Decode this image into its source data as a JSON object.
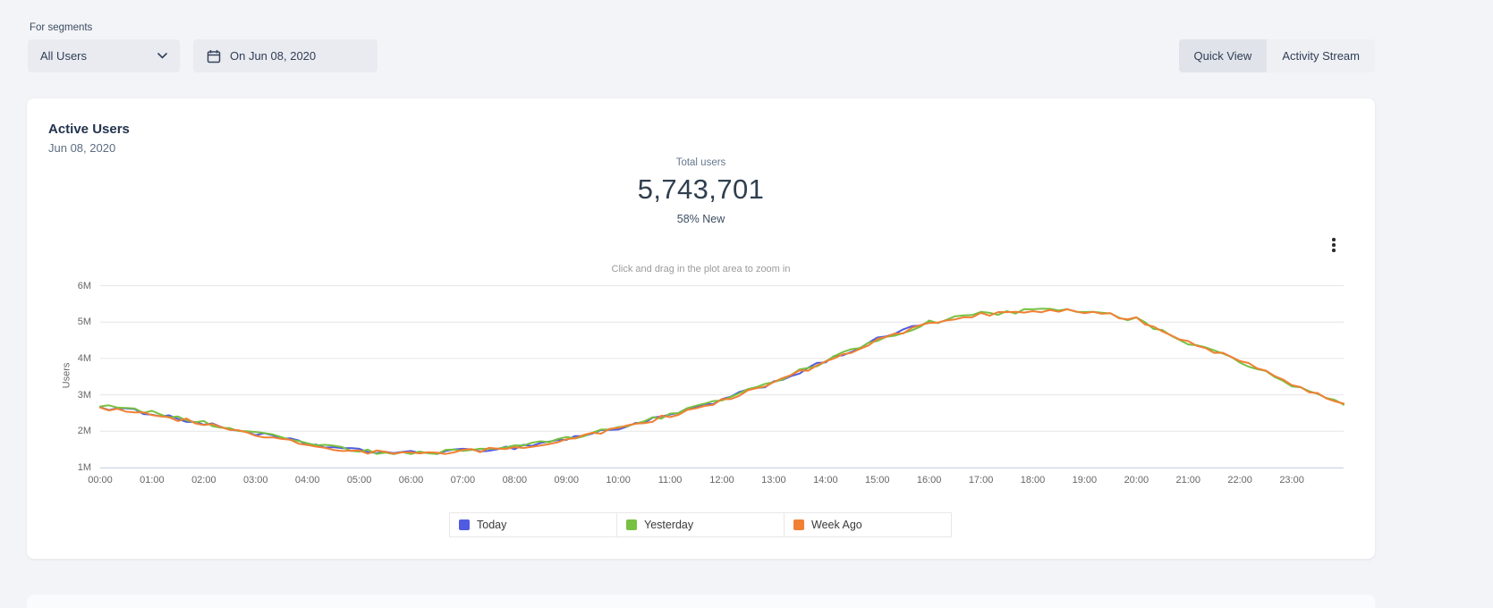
{
  "topbar": {
    "segments_label": "For segments",
    "segment_dropdown": {
      "value": "All Users"
    },
    "date_picker": {
      "label": "On Jun 08, 2020"
    },
    "view_toggle": {
      "quick_view_label": "Quick View",
      "activity_stream_label": "Activity Stream",
      "active": "Quick View"
    }
  },
  "card": {
    "title": "Active Users",
    "date": "Jun 08, 2020",
    "total_label": "Total users",
    "total_value": "5,743,701",
    "new_percentage": "58% New",
    "zoom_hint": "Click and drag in the plot area to zoom in"
  },
  "chart_data": {
    "type": "line",
    "title": "Active Users",
    "xlabel": "",
    "ylabel": "Users",
    "x_ticks": [
      "00:00",
      "01:00",
      "02:00",
      "03:00",
      "04:00",
      "05:00",
      "06:00",
      "07:00",
      "08:00",
      "09:00",
      "10:00",
      "11:00",
      "12:00",
      "13:00",
      "14:00",
      "15:00",
      "16:00",
      "17:00",
      "18:00",
      "19:00",
      "20:00",
      "21:00",
      "22:00",
      "23:00"
    ],
    "y_ticks": [
      "1M",
      "2M",
      "3M",
      "4M",
      "5M",
      "6M"
    ],
    "ylim_millions": [
      1,
      6
    ],
    "grid": true,
    "legend_position": "bottom",
    "units": "users (millions)",
    "series": [
      {
        "name": "Today",
        "color": "#4f5be1",
        "note": "partial day, data ends around 16:00",
        "values_millions": [
          2.66,
          2.5,
          2.2,
          1.94,
          1.65,
          1.46,
          1.4,
          1.46,
          1.56,
          1.79,
          2.09,
          2.44,
          2.85,
          3.35,
          3.91,
          4.52,
          5.02
        ]
      },
      {
        "name": "Yesterday",
        "color": "#77c142",
        "values_millions": [
          2.68,
          2.52,
          2.22,
          1.96,
          1.66,
          1.46,
          1.39,
          1.45,
          1.57,
          1.8,
          2.1,
          2.46,
          2.87,
          3.37,
          3.93,
          4.5,
          4.99,
          5.22,
          5.31,
          5.3,
          5.07,
          4.44,
          3.93,
          3.27,
          2.73
        ]
      },
      {
        "name": "Week Ago",
        "color": "#f08034",
        "values_millions": [
          2.65,
          2.49,
          2.19,
          1.93,
          1.64,
          1.44,
          1.38,
          1.44,
          1.55,
          1.78,
          2.08,
          2.43,
          2.85,
          3.34,
          3.9,
          4.48,
          4.97,
          5.2,
          5.32,
          5.29,
          5.09,
          4.47,
          3.96,
          3.3,
          2.76
        ]
      }
    ]
  }
}
